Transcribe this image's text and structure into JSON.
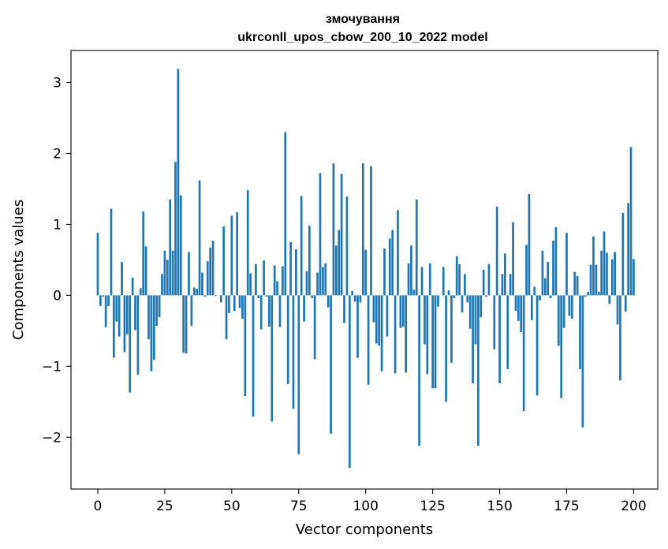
{
  "chart_data": {
    "type": "bar",
    "title_line1": "змочування",
    "title_line2": "ukrconll_upos_cbow_200_10_2022 model",
    "xlabel": "Vector components",
    "ylabel": "Components values",
    "xlim": [
      -10,
      209
    ],
    "ylim": [
      -2.73,
      3.45
    ],
    "xticks": [
      0,
      25,
      50,
      75,
      100,
      125,
      150,
      175,
      200
    ],
    "xtick_labels": [
      "0",
      "25",
      "50",
      "75",
      "100",
      "125",
      "150",
      "175",
      "200"
    ],
    "yticks": [
      -2,
      -1,
      0,
      1,
      2,
      3
    ],
    "ytick_labels": [
      "−2",
      "−1",
      "0",
      "1",
      "2",
      "3"
    ],
    "bar_color": "#1f77b4",
    "grid": false,
    "values": [
      0.88,
      -0.15,
      -0.02,
      -0.45,
      -0.15,
      1.22,
      -0.88,
      -0.37,
      -0.58,
      0.47,
      -0.8,
      -0.55,
      -1.37,
      0.25,
      -0.49,
      -1.12,
      0.1,
      1.18,
      0.69,
      -0.62,
      -1.07,
      -0.91,
      -0.43,
      -0.31,
      0.3,
      0.63,
      0.5,
      1.35,
      0.63,
      1.88,
      3.19,
      1.41,
      -0.81,
      -0.82,
      0.61,
      -0.43,
      0.11,
      0.09,
      1.62,
      0.32,
      -0.02,
      0.48,
      0.67,
      0.77,
      -0.01,
      0.0,
      -0.1,
      0.97,
      -0.62,
      -0.25,
      1.12,
      -0.22,
      1.17,
      -0.18,
      -0.33,
      -1.42,
      1.48,
      0.31,
      -1.71,
      0.44,
      -0.04,
      -0.48,
      0.49,
      -0.02,
      -0.44,
      -1.78,
      0.42,
      0.2,
      -0.45,
      0.41,
      2.3,
      -1.25,
      0.75,
      -1.6,
      0.65,
      -2.24,
      1.4,
      -0.37,
      0.34,
      0.98,
      -0.04,
      -0.9,
      0.32,
      1.72,
      0.4,
      0.45,
      -0.17,
      -1.95,
      1.86,
      0.7,
      0.92,
      1.71,
      -0.39,
      1.39,
      -2.43,
      0.06,
      -0.09,
      -0.88,
      -0.1,
      1.86,
      0.64,
      -1.26,
      1.82,
      -0.38,
      -0.68,
      -0.71,
      -1.07,
      0.66,
      -0.58,
      0.8,
      0.92,
      -1.1,
      1.2,
      -0.46,
      -0.44,
      -1.09,
      0.45,
      0.7,
      0.08,
      1.35,
      -2.12,
      0.4,
      -0.69,
      -1.11,
      0.45,
      -1.31,
      -1.31,
      -0.16,
      0.0,
      0.4,
      -1.5,
      0.07,
      -0.95,
      -0.04,
      0.55,
      0.44,
      -0.24,
      0.3,
      -0.1,
      -0.47,
      -1.24,
      -0.69,
      -2.12,
      -0.31,
      0.36,
      -0.02,
      0.44,
      0.0,
      -0.76,
      1.25,
      -1.24,
      0.3,
      0.59,
      -1.04,
      0.3,
      1.03,
      -0.22,
      -0.36,
      -0.52,
      -1.63,
      0.71,
      1.43,
      -0.35,
      0.12,
      -1.41,
      -0.07,
      0.63,
      0.24,
      0.47,
      -0.04,
      0.77,
      0.96,
      -0.71,
      -1.45,
      -0.46,
      0.88,
      -0.29,
      -0.33,
      0.33,
      0.27,
      -1.04,
      -1.86,
      -0.02,
      0.05,
      0.43,
      0.83,
      0.43,
      0.05,
      0.63,
      0.9,
      0.6,
      -0.12,
      0.51,
      0.61,
      -0.41,
      -1.2,
      1.16,
      -0.23,
      1.3,
      2.09,
      0.51
    ]
  }
}
